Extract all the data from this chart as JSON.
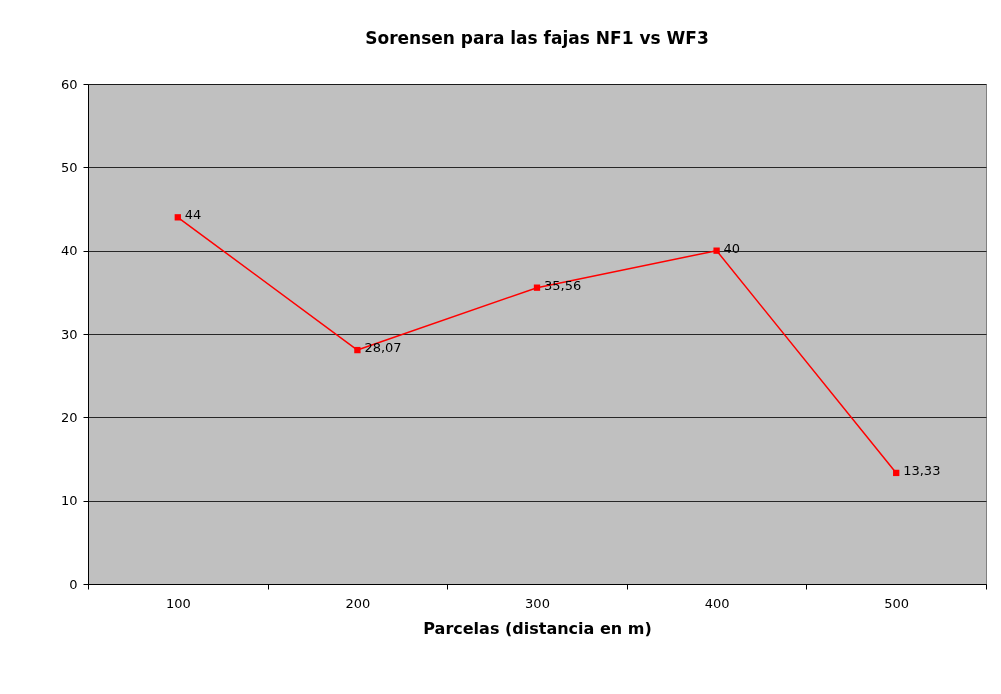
{
  "chart_data": {
    "type": "line",
    "title": "Sorensen para las fajas NF1 vs WF3",
    "xlabel": "Parcelas (distancia en m)",
    "categories": [
      "100",
      "200",
      "300",
      "400",
      "500"
    ],
    "series": [
      {
        "color": "#ff0000",
        "values": [
          44,
          28.07,
          35.56,
          40,
          13.33
        ],
        "value_labels": [
          "44",
          "28,07",
          "35,56",
          "40",
          "13,33"
        ]
      }
    ],
    "ylim": [
      0,
      60
    ],
    "yticks": [
      0,
      10,
      20,
      30,
      40,
      50,
      60
    ],
    "grid": "y",
    "marker": "square",
    "line_style": "solid"
  }
}
